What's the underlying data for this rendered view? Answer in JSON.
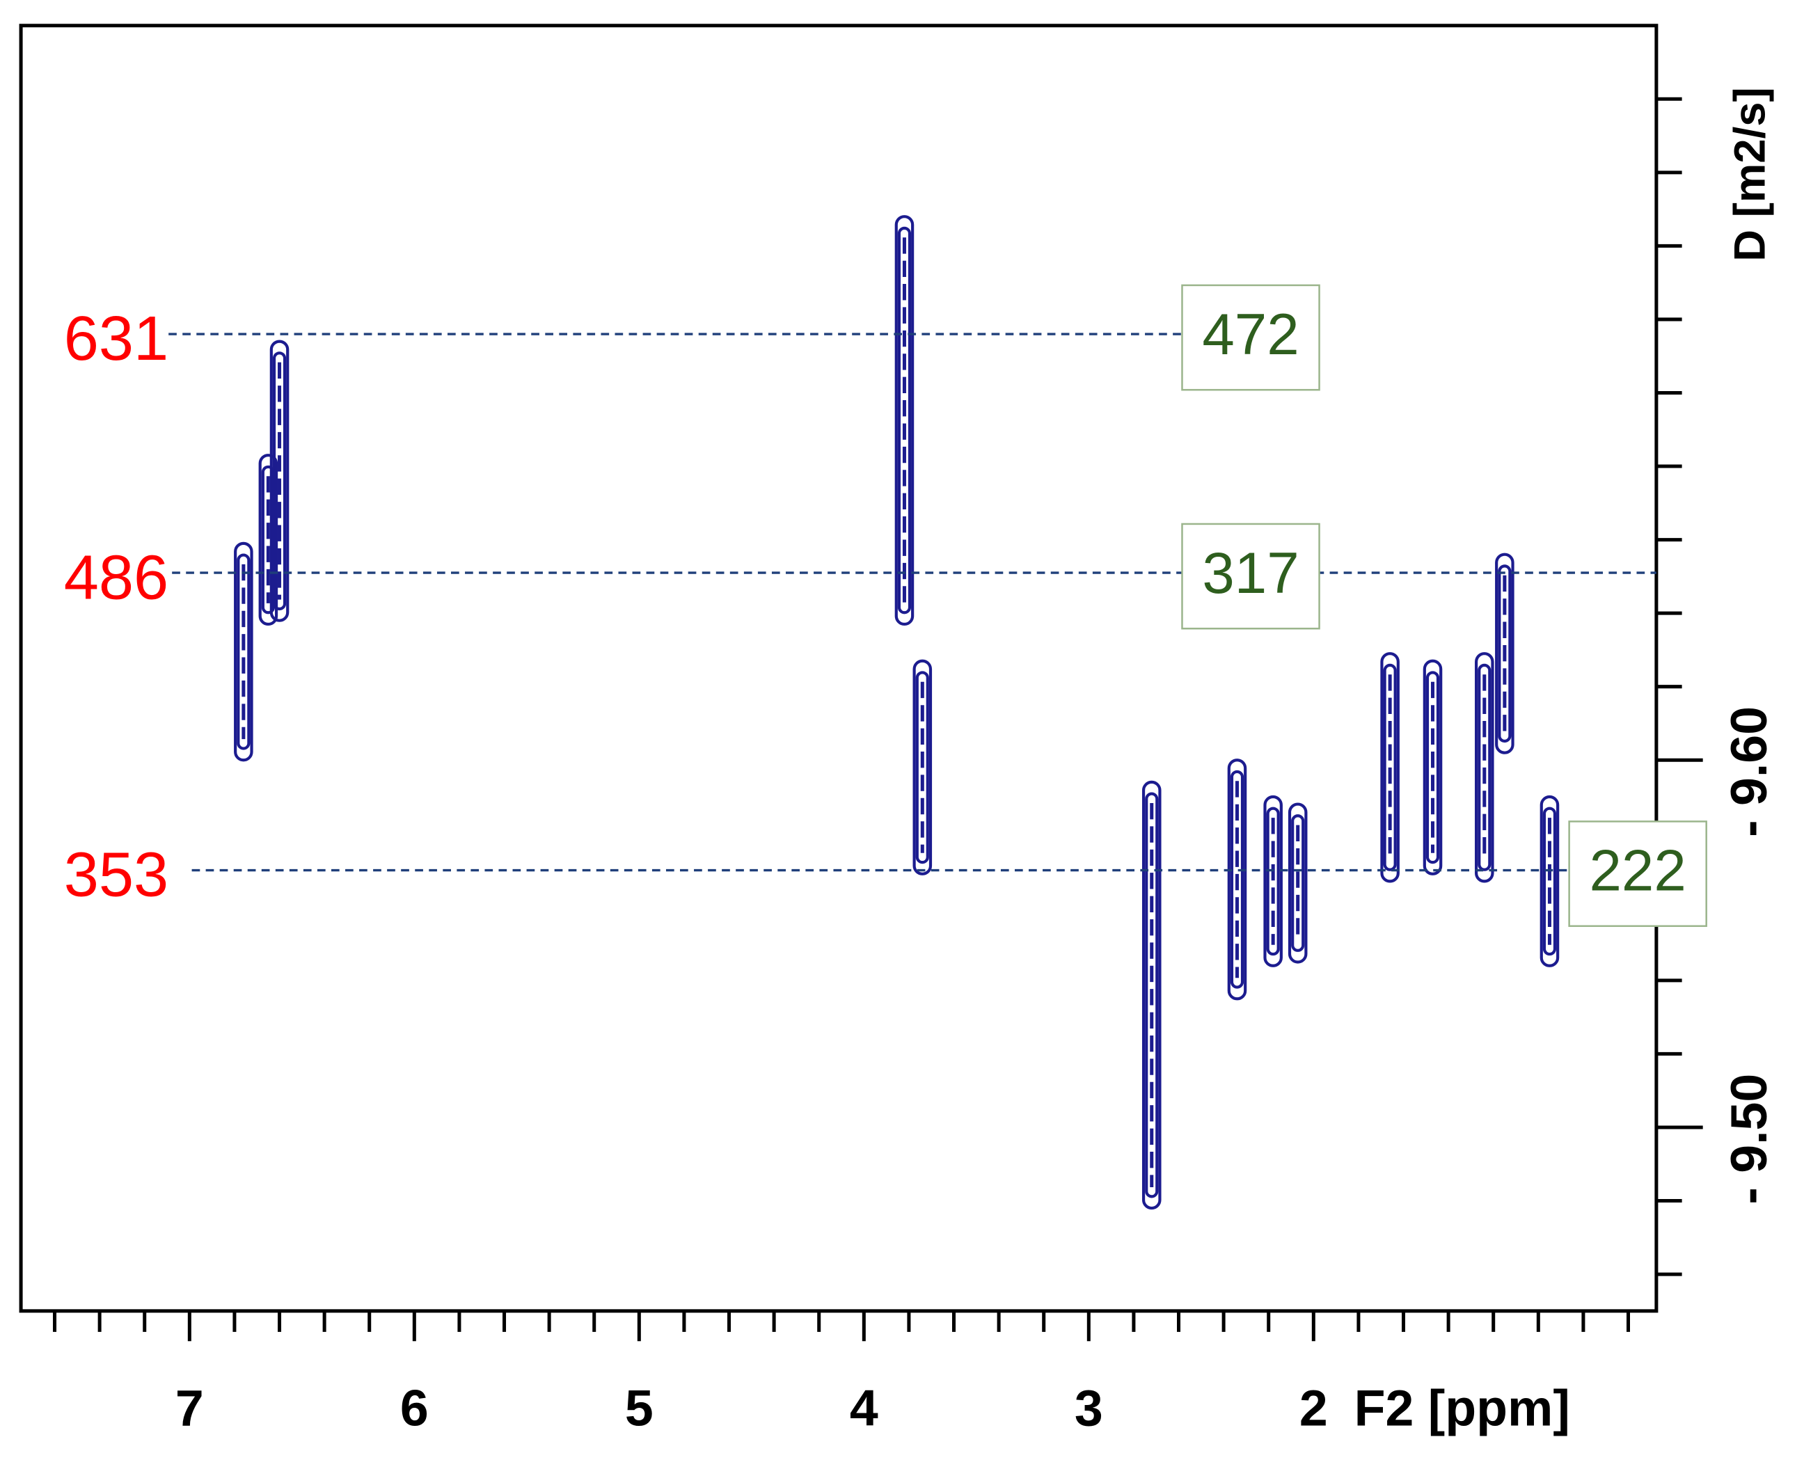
{
  "chart_data": {
    "type": "dosy",
    "x_label": "F2 [ppm]",
    "y_label": "D [m2/s]",
    "xlim": [
      7.75,
      0.475
    ],
    "ylim": [
      -9.45,
      -9.8
    ],
    "xticks": [
      7,
      6,
      5,
      4,
      3,
      2
    ],
    "xminorticks": [
      7.6,
      7.4,
      7.2,
      6.8,
      6.6,
      6.4,
      6.2,
      5.8,
      5.6,
      5.4,
      5.2,
      4.8,
      4.6,
      4.4,
      4.2,
      3.8,
      3.6,
      3.4,
      3.2,
      2.8,
      2.6,
      2.4,
      2.2,
      1.8,
      1.6,
      1.4,
      1.2,
      1.0,
      0.8,
      0.6
    ],
    "yticks": [
      {
        "value": -9.6,
        "label": "- 9.60"
      },
      {
        "value": -9.5,
        "label": "- 9.50"
      }
    ],
    "yminorticks": [
      -9.78,
      -9.76,
      -9.74,
      -9.72,
      -9.7,
      -9.68,
      -9.66,
      -9.64,
      -9.62,
      -9.58,
      -9.56,
      -9.54,
      -9.52,
      -9.48,
      -9.46
    ],
    "color": "#1c1c8f",
    "peaks": {
      "x": [
        6.76,
        6.6,
        6.65,
        3.82,
        3.74,
        2.72,
        2.34,
        2.18,
        2.07,
        1.66,
        1.47,
        1.24,
        1.15,
        0.95
      ],
      "ylow": [
        -9.659,
        -9.714,
        -9.683,
        -9.748,
        -9.627,
        -9.594,
        -9.6,
        -9.59,
        -9.588,
        -9.629,
        -9.627,
        -9.629,
        -9.656,
        -9.59
      ],
      "yhigh": [
        -9.6,
        -9.638,
        -9.637,
        -9.637,
        -9.569,
        -9.478,
        -9.535,
        -9.544,
        -9.545,
        -9.567,
        -9.569,
        -9.567,
        -9.602,
        -9.544
      ]
    },
    "annotations": [
      {
        "y": -9.716,
        "left": "631",
        "right": "472"
      },
      {
        "y": -9.651,
        "left": "486",
        "right": "317"
      },
      {
        "y": -9.57,
        "left": "353",
        "right": "222"
      }
    ]
  }
}
